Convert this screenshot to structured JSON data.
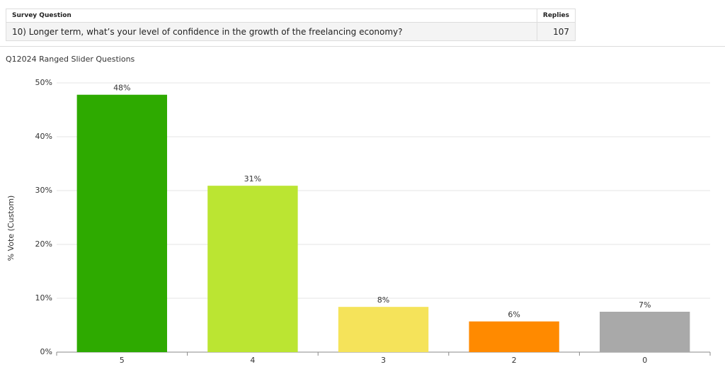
{
  "table": {
    "columns": [
      "Survey Question",
      "Replies"
    ],
    "rows": [
      [
        "10) Longer term, what’s your level of confidence in the growth of the freelancing economy?",
        "107"
      ]
    ]
  },
  "chart_data": {
    "type": "bar",
    "title": "Q12024 Ranged Slider Questions",
    "y_label": "% Vote (Custom)",
    "categories": [
      "5",
      "4",
      "3",
      "2",
      "0"
    ],
    "values": [
      47.8,
      30.9,
      8.4,
      5.7,
      7.5
    ],
    "value_labels": [
      "48%",
      "31%",
      "8%",
      "6%",
      "7%"
    ],
    "colors": [
      "#2eaa00",
      "#bbe532",
      "#f5e35a",
      "#ff8a00",
      "#a9a9a9"
    ],
    "ylim": [
      0,
      50
    ],
    "yticks": [
      {
        "value": 0,
        "label": "0%"
      },
      {
        "value": 10,
        "label": "10%"
      },
      {
        "value": 20,
        "label": "20%"
      },
      {
        "value": 30,
        "label": "30%"
      },
      {
        "value": 40,
        "label": "40%"
      },
      {
        "value": 50,
        "label": "50%"
      }
    ],
    "grid": true
  }
}
